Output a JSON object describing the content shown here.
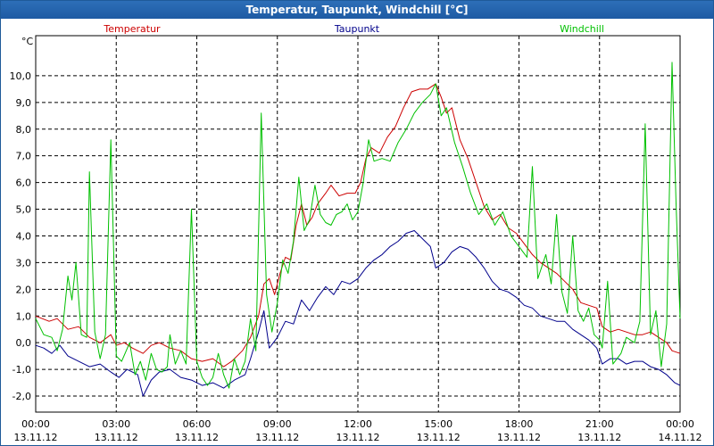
{
  "window": {
    "title": "Temperatur, Taupunkt, Windchill [°C]"
  },
  "chart_data": {
    "type": "line",
    "title": "Temperatur, Taupunkt, Windchill [°C]",
    "ylabel": "°C",
    "ylim": [
      -2.6,
      11.5
    ],
    "yticks": [
      "-2,0",
      "-1,0",
      "0,0",
      "1,0",
      "2,0",
      "3,0",
      "4,0",
      "5,0",
      "6,0",
      "7,0",
      "8,0",
      "9,0",
      "10,0"
    ],
    "ytick_values": [
      -2,
      -1,
      0,
      1,
      2,
      3,
      4,
      5,
      6,
      7,
      8,
      9,
      10
    ],
    "xlim_hours": [
      0,
      24
    ],
    "xticks": [
      {
        "time": "00:00",
        "date": "13.11.12"
      },
      {
        "time": "03:00",
        "date": "13.11.12"
      },
      {
        "time": "06:00",
        "date": "13.11.12"
      },
      {
        "time": "09:00",
        "date": "13.11.12"
      },
      {
        "time": "12:00",
        "date": "13.11.12"
      },
      {
        "time": "15:00",
        "date": "13.11.12"
      },
      {
        "time": "18:00",
        "date": "13.11.12"
      },
      {
        "time": "21:00",
        "date": "13.11.12"
      },
      {
        "time": "00:00",
        "date": "14.11.12"
      }
    ],
    "grid": true,
    "legend_position": "top",
    "series": [
      {
        "name": "Temperatur",
        "color": "#cc0000",
        "points": [
          [
            0.0,
            1.0
          ],
          [
            0.5,
            0.8
          ],
          [
            0.8,
            0.9
          ],
          [
            1.2,
            0.5
          ],
          [
            1.6,
            0.6
          ],
          [
            2.0,
            0.2
          ],
          [
            2.4,
            0.0
          ],
          [
            2.8,
            0.3
          ],
          [
            3.0,
            -0.1
          ],
          [
            3.3,
            0.0
          ],
          [
            3.6,
            -0.2
          ],
          [
            4.0,
            -0.4
          ],
          [
            4.3,
            -0.1
          ],
          [
            4.6,
            0.0
          ],
          [
            5.0,
            -0.2
          ],
          [
            5.4,
            -0.3
          ],
          [
            5.8,
            -0.6
          ],
          [
            6.2,
            -0.7
          ],
          [
            6.6,
            -0.6
          ],
          [
            7.0,
            -0.9
          ],
          [
            7.3,
            -0.7
          ],
          [
            7.7,
            -0.3
          ],
          [
            8.0,
            0.2
          ],
          [
            8.3,
            1.0
          ],
          [
            8.5,
            2.2
          ],
          [
            8.7,
            2.4
          ],
          [
            8.9,
            1.8
          ],
          [
            9.1,
            2.6
          ],
          [
            9.3,
            3.2
          ],
          [
            9.5,
            3.1
          ],
          [
            9.7,
            4.4
          ],
          [
            9.9,
            5.2
          ],
          [
            10.1,
            4.4
          ],
          [
            10.3,
            4.7
          ],
          [
            10.5,
            5.2
          ],
          [
            10.8,
            5.6
          ],
          [
            11.0,
            5.9
          ],
          [
            11.3,
            5.5
          ],
          [
            11.6,
            5.6
          ],
          [
            11.9,
            5.6
          ],
          [
            12.1,
            6.0
          ],
          [
            12.3,
            6.9
          ],
          [
            12.5,
            7.3
          ],
          [
            12.8,
            7.1
          ],
          [
            13.1,
            7.7
          ],
          [
            13.4,
            8.1
          ],
          [
            13.7,
            8.8
          ],
          [
            14.0,
            9.4
          ],
          [
            14.3,
            9.5
          ],
          [
            14.6,
            9.5
          ],
          [
            14.9,
            9.7
          ],
          [
            15.1,
            9.2
          ],
          [
            15.3,
            8.6
          ],
          [
            15.5,
            8.8
          ],
          [
            15.8,
            7.6
          ],
          [
            16.1,
            6.9
          ],
          [
            16.4,
            6.0
          ],
          [
            16.7,
            5.1
          ],
          [
            17.0,
            4.6
          ],
          [
            17.3,
            4.8
          ],
          [
            17.6,
            4.3
          ],
          [
            17.9,
            4.1
          ],
          [
            18.2,
            3.7
          ],
          [
            18.5,
            3.3
          ],
          [
            18.8,
            3.0
          ],
          [
            19.1,
            2.8
          ],
          [
            19.4,
            2.6
          ],
          [
            19.7,
            2.3
          ],
          [
            20.0,
            2.0
          ],
          [
            20.3,
            1.5
          ],
          [
            20.6,
            1.4
          ],
          [
            20.9,
            1.3
          ],
          [
            21.1,
            0.6
          ],
          [
            21.4,
            0.4
          ],
          [
            21.7,
            0.5
          ],
          [
            22.0,
            0.4
          ],
          [
            22.3,
            0.3
          ],
          [
            22.6,
            0.3
          ],
          [
            22.9,
            0.4
          ],
          [
            23.2,
            0.2
          ],
          [
            23.5,
            0.0
          ],
          [
            23.7,
            -0.3
          ],
          [
            24.0,
            -0.4
          ]
        ]
      },
      {
        "name": "Taupunkt",
        "color": "#00008b",
        "points": [
          [
            0.0,
            -0.1
          ],
          [
            0.3,
            -0.2
          ],
          [
            0.6,
            -0.4
          ],
          [
            0.9,
            -0.1
          ],
          [
            1.2,
            -0.5
          ],
          [
            1.6,
            -0.7
          ],
          [
            2.0,
            -0.9
          ],
          [
            2.4,
            -0.8
          ],
          [
            2.8,
            -1.1
          ],
          [
            3.1,
            -1.3
          ],
          [
            3.4,
            -1.0
          ],
          [
            3.8,
            -1.2
          ],
          [
            4.0,
            -2.0
          ],
          [
            4.3,
            -1.4
          ],
          [
            4.6,
            -1.1
          ],
          [
            5.0,
            -1.0
          ],
          [
            5.4,
            -1.3
          ],
          [
            5.8,
            -1.4
          ],
          [
            6.2,
            -1.6
          ],
          [
            6.6,
            -1.5
          ],
          [
            7.0,
            -1.7
          ],
          [
            7.4,
            -1.4
          ],
          [
            7.8,
            -1.2
          ],
          [
            8.0,
            -0.6
          ],
          [
            8.3,
            0.4
          ],
          [
            8.5,
            1.2
          ],
          [
            8.7,
            -0.2
          ],
          [
            9.0,
            0.2
          ],
          [
            9.3,
            0.8
          ],
          [
            9.6,
            0.7
          ],
          [
            9.9,
            1.6
          ],
          [
            10.2,
            1.2
          ],
          [
            10.5,
            1.7
          ],
          [
            10.8,
            2.1
          ],
          [
            11.1,
            1.8
          ],
          [
            11.4,
            2.3
          ],
          [
            11.7,
            2.2
          ],
          [
            12.0,
            2.4
          ],
          [
            12.3,
            2.8
          ],
          [
            12.6,
            3.1
          ],
          [
            12.9,
            3.3
          ],
          [
            13.2,
            3.6
          ],
          [
            13.5,
            3.8
          ],
          [
            13.8,
            4.1
          ],
          [
            14.1,
            4.2
          ],
          [
            14.4,
            3.9
          ],
          [
            14.7,
            3.6
          ],
          [
            14.9,
            2.8
          ],
          [
            15.2,
            3.0
          ],
          [
            15.5,
            3.4
          ],
          [
            15.8,
            3.6
          ],
          [
            16.1,
            3.5
          ],
          [
            16.4,
            3.2
          ],
          [
            16.7,
            2.8
          ],
          [
            17.0,
            2.3
          ],
          [
            17.3,
            2.0
          ],
          [
            17.6,
            1.9
          ],
          [
            17.9,
            1.7
          ],
          [
            18.2,
            1.4
          ],
          [
            18.5,
            1.3
          ],
          [
            18.8,
            1.0
          ],
          [
            19.1,
            0.9
          ],
          [
            19.4,
            0.8
          ],
          [
            19.7,
            0.8
          ],
          [
            20.0,
            0.5
          ],
          [
            20.3,
            0.3
          ],
          [
            20.6,
            0.1
          ],
          [
            20.9,
            -0.2
          ],
          [
            21.1,
            -0.8
          ],
          [
            21.4,
            -0.6
          ],
          [
            21.7,
            -0.6
          ],
          [
            22.0,
            -0.8
          ],
          [
            22.3,
            -0.7
          ],
          [
            22.6,
            -0.7
          ],
          [
            22.9,
            -0.9
          ],
          [
            23.2,
            -1.0
          ],
          [
            23.5,
            -1.2
          ],
          [
            23.8,
            -1.5
          ],
          [
            24.0,
            -1.6
          ]
        ]
      },
      {
        "name": "Windchill",
        "color": "#00c000",
        "points": [
          [
            0.0,
            0.9
          ],
          [
            0.3,
            0.3
          ],
          [
            0.6,
            0.2
          ],
          [
            0.8,
            -0.3
          ],
          [
            1.0,
            0.5
          ],
          [
            1.2,
            2.5
          ],
          [
            1.35,
            1.6
          ],
          [
            1.5,
            3.0
          ],
          [
            1.7,
            0.3
          ],
          [
            1.9,
            0.2
          ],
          [
            2.0,
            6.4
          ],
          [
            2.2,
            0.4
          ],
          [
            2.4,
            -0.6
          ],
          [
            2.6,
            0.3
          ],
          [
            2.8,
            7.6
          ],
          [
            3.0,
            -0.5
          ],
          [
            3.2,
            -0.7
          ],
          [
            3.5,
            0.0
          ],
          [
            3.7,
            -1.2
          ],
          [
            3.9,
            -0.7
          ],
          [
            4.1,
            -1.4
          ],
          [
            4.3,
            -0.4
          ],
          [
            4.5,
            -1.0
          ],
          [
            4.7,
            -1.1
          ],
          [
            4.9,
            -0.9
          ],
          [
            5.0,
            0.3
          ],
          [
            5.2,
            -0.8
          ],
          [
            5.4,
            -0.3
          ],
          [
            5.6,
            -0.8
          ],
          [
            5.8,
            5.0
          ],
          [
            6.0,
            -0.7
          ],
          [
            6.2,
            -1.3
          ],
          [
            6.4,
            -1.6
          ],
          [
            6.6,
            -1.3
          ],
          [
            6.8,
            -0.4
          ],
          [
            7.0,
            -1.2
          ],
          [
            7.2,
            -1.7
          ],
          [
            7.4,
            -0.6
          ],
          [
            7.6,
            -1.2
          ],
          [
            7.8,
            -0.7
          ],
          [
            8.0,
            0.9
          ],
          [
            8.2,
            -0.3
          ],
          [
            8.4,
            8.6
          ],
          [
            8.6,
            1.8
          ],
          [
            8.8,
            0.4
          ],
          [
            9.0,
            1.5
          ],
          [
            9.2,
            3.1
          ],
          [
            9.4,
            2.6
          ],
          [
            9.6,
            3.8
          ],
          [
            9.8,
            6.2
          ],
          [
            10.0,
            4.2
          ],
          [
            10.2,
            4.6
          ],
          [
            10.4,
            5.9
          ],
          [
            10.6,
            4.8
          ],
          [
            10.8,
            4.5
          ],
          [
            11.0,
            4.4
          ],
          [
            11.2,
            4.8
          ],
          [
            11.4,
            4.9
          ],
          [
            11.6,
            5.2
          ],
          [
            11.8,
            4.6
          ],
          [
            12.0,
            4.9
          ],
          [
            12.2,
            6.0
          ],
          [
            12.4,
            7.6
          ],
          [
            12.6,
            6.8
          ],
          [
            12.9,
            6.9
          ],
          [
            13.2,
            6.8
          ],
          [
            13.5,
            7.5
          ],
          [
            13.8,
            8.0
          ],
          [
            14.1,
            8.6
          ],
          [
            14.4,
            9.0
          ],
          [
            14.7,
            9.3
          ],
          [
            14.9,
            9.7
          ],
          [
            15.1,
            8.5
          ],
          [
            15.3,
            8.8
          ],
          [
            15.6,
            7.5
          ],
          [
            15.9,
            6.6
          ],
          [
            16.2,
            5.6
          ],
          [
            16.5,
            4.8
          ],
          [
            16.8,
            5.2
          ],
          [
            17.1,
            4.4
          ],
          [
            17.4,
            4.9
          ],
          [
            17.7,
            4.0
          ],
          [
            18.0,
            3.6
          ],
          [
            18.3,
            3.2
          ],
          [
            18.5,
            6.6
          ],
          [
            18.7,
            2.4
          ],
          [
            19.0,
            3.3
          ],
          [
            19.2,
            2.2
          ],
          [
            19.4,
            4.8
          ],
          [
            19.6,
            1.9
          ],
          [
            19.8,
            1.1
          ],
          [
            20.0,
            4.0
          ],
          [
            20.2,
            1.2
          ],
          [
            20.4,
            0.8
          ],
          [
            20.6,
            1.3
          ],
          [
            20.8,
            0.3
          ],
          [
            21.0,
            0.1
          ],
          [
            21.1,
            -0.2
          ],
          [
            21.3,
            2.3
          ],
          [
            21.5,
            -0.8
          ],
          [
            21.8,
            -0.4
          ],
          [
            22.0,
            0.2
          ],
          [
            22.3,
            0.0
          ],
          [
            22.5,
            0.8
          ],
          [
            22.7,
            8.2
          ],
          [
            22.9,
            0.3
          ],
          [
            23.1,
            1.2
          ],
          [
            23.3,
            -0.9
          ],
          [
            23.5,
            0.7
          ],
          [
            23.7,
            10.5
          ],
          [
            23.85,
            5.2
          ],
          [
            24.0,
            0.9
          ]
        ]
      }
    ]
  }
}
